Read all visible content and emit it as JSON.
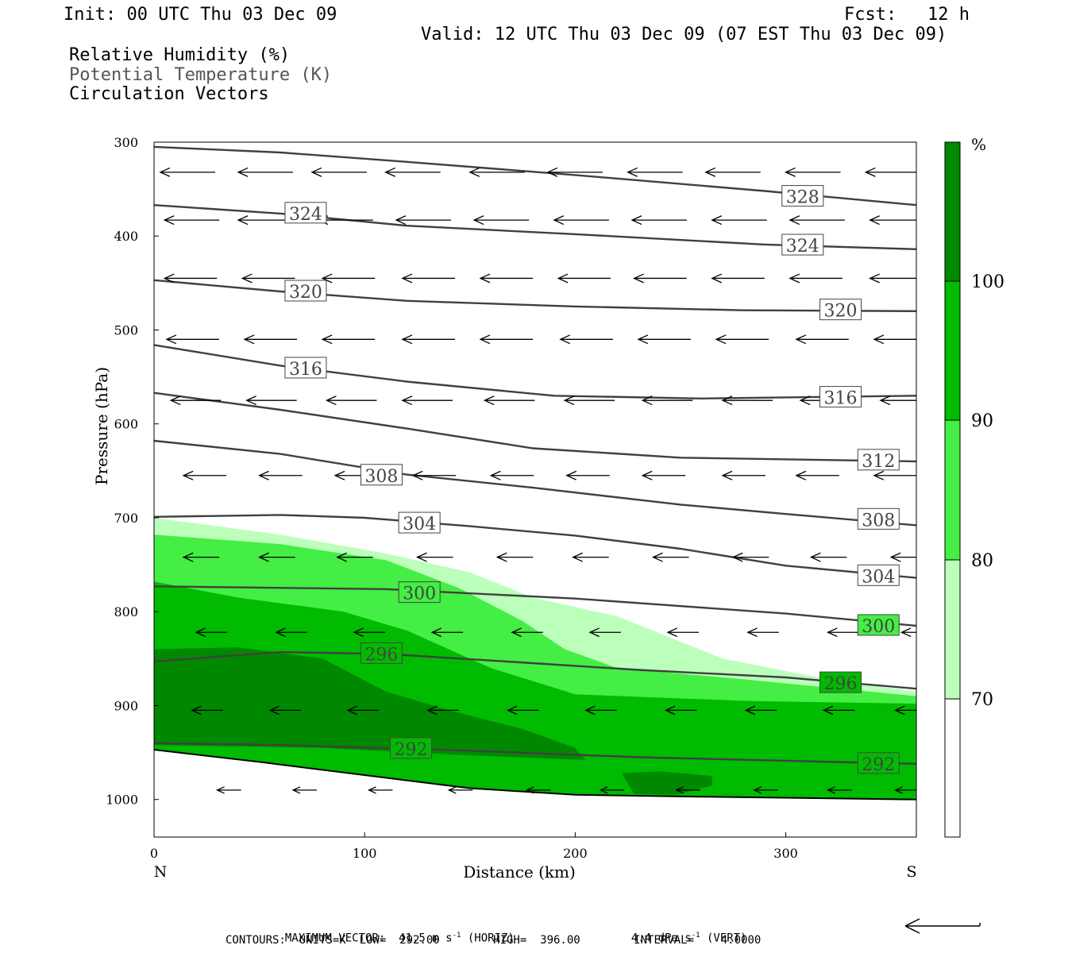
{
  "header": {
    "init": "Init: 00 UTC Thu 03 Dec 09",
    "fcst_label": "Fcst:",
    "fcst_value": "12 h",
    "valid": "Valid: 12 UTC Thu 03 Dec 09 (07 EST Thu 03 Dec 09)"
  },
  "fields": {
    "rh": "Relative Humidity (%)",
    "theta": "Potential Temperature (K)",
    "vectors": "Circulation Vectors"
  },
  "footer": {
    "max_vector": "MAXIMUM VECTOR:  41.5 m s",
    "horiz": "(HORIZ)",
    "vert_val": "4.4 dPa s",
    "vert": "(VERT)",
    "contours": "CONTOURS:  UNITS=K  LOW=  292.00        HIGH=  396.00        INTERVAL=    4.0000"
  },
  "colors": {
    "rh_70_80": "#bbffbb",
    "rh_80_90": "#44ee44",
    "rh_90_100": "#00bb00",
    "rh_100": "#008800",
    "theta_line": "#404040"
  },
  "chart_data": {
    "type": "cross-section contour",
    "xlabel": "Distance (km)",
    "ylabel": "Pressure (hPa)",
    "xlim": [
      0,
      362
    ],
    "ylim": [
      1040,
      300
    ],
    "x_ticks": [
      0,
      100,
      200,
      300
    ],
    "y_ticks": [
      300,
      400,
      500,
      600,
      700,
      800,
      900,
      1000
    ],
    "x_end_labels": [
      "N",
      "S"
    ],
    "colorbar": {
      "unit": "%",
      "levels": [
        70,
        80,
        90,
        100
      ]
    },
    "rh_fills": [
      {
        "level": 70,
        "upper": [
          [
            0,
            700
          ],
          [
            60,
            718
          ],
          [
            110,
            738
          ],
          [
            150,
            758
          ],
          [
            180,
            785
          ],
          [
            220,
            805
          ],
          [
            270,
            850
          ],
          [
            320,
            872
          ],
          [
            362,
            885
          ]
        ]
      },
      {
        "level": 80,
        "upper": [
          [
            0,
            718
          ],
          [
            60,
            728
          ],
          [
            110,
            745
          ],
          [
            145,
            775
          ],
          [
            175,
            810
          ],
          [
            195,
            840
          ],
          [
            220,
            860
          ],
          [
            280,
            872
          ],
          [
            362,
            890
          ]
        ]
      },
      {
        "level": 90,
        "upper": [
          [
            0,
            768
          ],
          [
            40,
            785
          ],
          [
            90,
            800
          ],
          [
            120,
            820
          ],
          [
            160,
            860
          ],
          [
            200,
            888
          ],
          [
            280,
            895
          ],
          [
            362,
            898
          ]
        ]
      },
      {
        "level": 100,
        "upper": [
          [
            0,
            840
          ],
          [
            40,
            838
          ],
          [
            80,
            850
          ],
          [
            110,
            885
          ],
          [
            140,
            905
          ],
          [
            175,
            925
          ],
          [
            200,
            945
          ],
          [
            205,
            958
          ],
          [
            140,
            952
          ],
          [
            80,
            945
          ],
          [
            0,
            942
          ]
        ]
      }
    ],
    "rh_patch_100": [
      [
        222,
        972
      ],
      [
        240,
        970
      ],
      [
        265,
        975
      ],
      [
        265,
        985
      ],
      [
        248,
        995
      ],
      [
        228,
        994
      ]
    ],
    "theta_contours": [
      {
        "level": 292,
        "points": [
          [
            0,
            940
          ],
          [
            60,
            942
          ],
          [
            150,
            948
          ],
          [
            230,
            955
          ],
          [
            362,
            962
          ]
        ]
      },
      {
        "level": 296,
        "points": [
          [
            0,
            853
          ],
          [
            60,
            843
          ],
          [
            110,
            845
          ],
          [
            160,
            852
          ],
          [
            230,
            862
          ],
          [
            300,
            870
          ],
          [
            362,
            882
          ]
        ]
      },
      {
        "level": 300,
        "points": [
          [
            0,
            773
          ],
          [
            110,
            776
          ],
          [
            200,
            786
          ],
          [
            300,
            802
          ],
          [
            362,
            815
          ]
        ]
      },
      {
        "level": 304,
        "points": [
          [
            0,
            699
          ],
          [
            60,
            697
          ],
          [
            100,
            700
          ],
          [
            150,
            709
          ],
          [
            200,
            719
          ],
          [
            250,
            733
          ],
          [
            300,
            751
          ],
          [
            362,
            764
          ]
        ]
      },
      {
        "level": 308,
        "points": [
          [
            0,
            618
          ],
          [
            60,
            632
          ],
          [
            120,
            654
          ],
          [
            180,
            668
          ],
          [
            250,
            686
          ],
          [
            300,
            696
          ],
          [
            362,
            708
          ]
        ]
      },
      {
        "level": 312,
        "points": [
          [
            0,
            567
          ],
          [
            60,
            585
          ],
          [
            120,
            605
          ],
          [
            180,
            626
          ],
          [
            250,
            636
          ],
          [
            362,
            640
          ]
        ]
      },
      {
        "level": 316,
        "points": [
          [
            0,
            516
          ],
          [
            60,
            538
          ],
          [
            120,
            555
          ],
          [
            190,
            570
          ],
          [
            260,
            573
          ],
          [
            362,
            570
          ]
        ]
      },
      {
        "level": 320,
        "points": [
          [
            0,
            447
          ],
          [
            60,
            459
          ],
          [
            120,
            469
          ],
          [
            200,
            475
          ],
          [
            280,
            479
          ],
          [
            362,
            480
          ]
        ]
      },
      {
        "level": 324,
        "points": [
          [
            0,
            367
          ],
          [
            60,
            376
          ],
          [
            120,
            389
          ],
          [
            200,
            398
          ],
          [
            290,
            409
          ],
          [
            362,
            414
          ]
        ]
      },
      {
        "level": 328,
        "points": [
          [
            0,
            305
          ],
          [
            60,
            311
          ],
          [
            120,
            321
          ],
          [
            200,
            335
          ],
          [
            290,
            352
          ],
          [
            362,
            367
          ]
        ]
      }
    ],
    "contour_labels": [
      {
        "text": "328",
        "x": 308,
        "p": 358
      },
      {
        "text": "324",
        "x": 72,
        "p": 376
      },
      {
        "text": "324",
        "x": 308,
        "p": 410
      },
      {
        "text": "320",
        "x": 72,
        "p": 459
      },
      {
        "text": "320",
        "x": 326,
        "p": 479
      },
      {
        "text": "316",
        "x": 72,
        "p": 541
      },
      {
        "text": "316",
        "x": 326,
        "p": 572
      },
      {
        "text": "312",
        "x": 344,
        "p": 639
      },
      {
        "text": "308",
        "x": 108,
        "p": 655
      },
      {
        "text": "308",
        "x": 344,
        "p": 702
      },
      {
        "text": "304",
        "x": 126,
        "p": 706
      },
      {
        "text": "304",
        "x": 344,
        "p": 762
      },
      {
        "text": "300",
        "x": 126,
        "p": 780
      },
      {
        "text": "300",
        "x": 344,
        "p": 815
      },
      {
        "text": "296",
        "x": 108,
        "p": 845
      },
      {
        "text": "296",
        "x": 326,
        "p": 876
      },
      {
        "text": "292",
        "x": 122,
        "p": 946
      },
      {
        "text": "292",
        "x": 344,
        "p": 962
      }
    ],
    "terrain": [
      [
        0,
        947
      ],
      [
        50,
        960
      ],
      [
        100,
        974
      ],
      [
        150,
        988
      ],
      [
        200,
        995
      ],
      [
        260,
        997
      ],
      [
        362,
        1000
      ]
    ],
    "vector_rows": [
      {
        "p": 332,
        "xs": [
          3,
          40,
          75,
          110,
          150,
          187,
          225,
          262,
          300,
          338
        ],
        "len": 23
      },
      {
        "p": 383,
        "xs": [
          5,
          40,
          78,
          115,
          152,
          190,
          227,
          265,
          302,
          340
        ],
        "len": 23
      },
      {
        "p": 445,
        "xs": [
          5,
          42,
          80,
          118,
          155,
          192,
          228,
          265,
          302,
          340
        ],
        "len": 22
      },
      {
        "p": 510,
        "xs": [
          6,
          43,
          80,
          118,
          155,
          193,
          230,
          267,
          305,
          342
        ],
        "len": 22
      },
      {
        "p": 575,
        "xs": [
          8,
          44,
          82,
          118,
          157,
          195,
          232,
          270,
          307,
          345
        ],
        "len": 21
      },
      {
        "p": 655,
        "xs": [
          14,
          50,
          86,
          123,
          160,
          196,
          232,
          270,
          305,
          342
        ],
        "len": 18
      },
      {
        "p": 742,
        "xs": [
          14,
          50,
          87,
          125,
          163,
          199,
          237,
          275,
          312,
          350
        ],
        "len": 15
      },
      {
        "p": 822,
        "xs": [
          20,
          58,
          95,
          132,
          170,
          207,
          244,
          282,
          320,
          355
        ],
        "len": 13
      },
      {
        "p": 905,
        "xs": [
          18,
          55,
          92,
          130,
          168,
          205,
          243,
          281,
          318,
          352
        ],
        "len": 13
      },
      {
        "p": 990,
        "xs": [
          30,
          66,
          102,
          140,
          177,
          212,
          248,
          285,
          320,
          352
        ],
        "len": 10
      }
    ]
  }
}
